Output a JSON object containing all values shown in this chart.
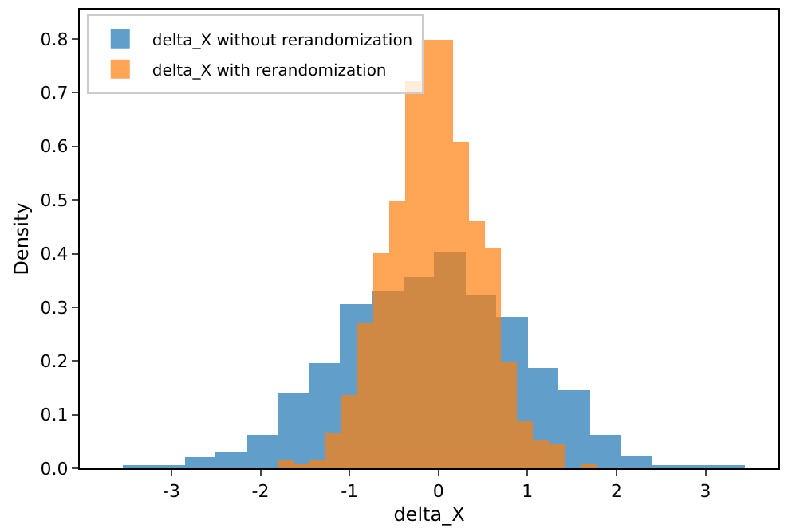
{
  "chart_data": {
    "type": "histogram",
    "xlabel": "delta_X",
    "ylabel": "Density",
    "xlim": [
      -4.03,
      3.82
    ],
    "ylim": [
      0,
      0.855
    ],
    "xticks": [
      -3,
      -2,
      -1,
      0,
      1,
      2,
      3
    ],
    "yticks": [
      {
        "value": 0,
        "label": "0.0"
      },
      {
        "value": 0.1,
        "label": "0.1"
      },
      {
        "value": 0.2,
        "label": "0.2"
      },
      {
        "value": 0.3,
        "label": "0.3"
      },
      {
        "value": 0.4,
        "label": "0.4"
      },
      {
        "value": 0.5,
        "label": "0.5"
      },
      {
        "value": 0.6,
        "label": "0.6"
      },
      {
        "value": 0.7,
        "label": "0.7"
      },
      {
        "value": 0.8,
        "label": "0.8"
      }
    ],
    "legend": "top left",
    "bins": [
      -3.55,
      -3.2,
      -2.85,
      -2.5,
      -2.15,
      -1.8,
      -1.45,
      -1.1,
      -0.75,
      -0.4,
      -0.05,
      0.3,
      0.65,
      1.0,
      1.35,
      1.7,
      2.05,
      2.4,
      2.75,
      3.1,
      3.45
    ],
    "series": [
      {
        "name": "delta_X without rerandomization",
        "color": "#1f77b4",
        "values": [
          0.007,
          0.003,
          0.02,
          0.03,
          0.063,
          0.14,
          0.196,
          0.305,
          0.33,
          0.357,
          0.404,
          0.323,
          0.282,
          0.188,
          0.145,
          0.061,
          0.025,
          0.007,
          0.007,
          0.003
        ]
      },
      {
        "name": "delta_X with rerandomization",
        "color": "#ff7f0e",
        "bins": [
          -1.8,
          -1.621,
          -1.442,
          -1.263,
          -1.084,
          -0.905,
          -0.726,
          -0.547,
          -0.368,
          -0.189,
          -0.01,
          0.169,
          0.348,
          0.527,
          0.706,
          0.885,
          1.064,
          1.243,
          1.422,
          1.601,
          1.78
        ],
        "values": [
          0.015,
          0.01,
          0.015,
          0.066,
          0.137,
          0.27,
          0.4,
          0.5,
          0.72,
          0.8,
          0.8,
          0.61,
          0.46,
          0.41,
          0.2,
          0.09,
          0.054,
          0.046,
          0,
          0.01
        ]
      }
    ]
  }
}
